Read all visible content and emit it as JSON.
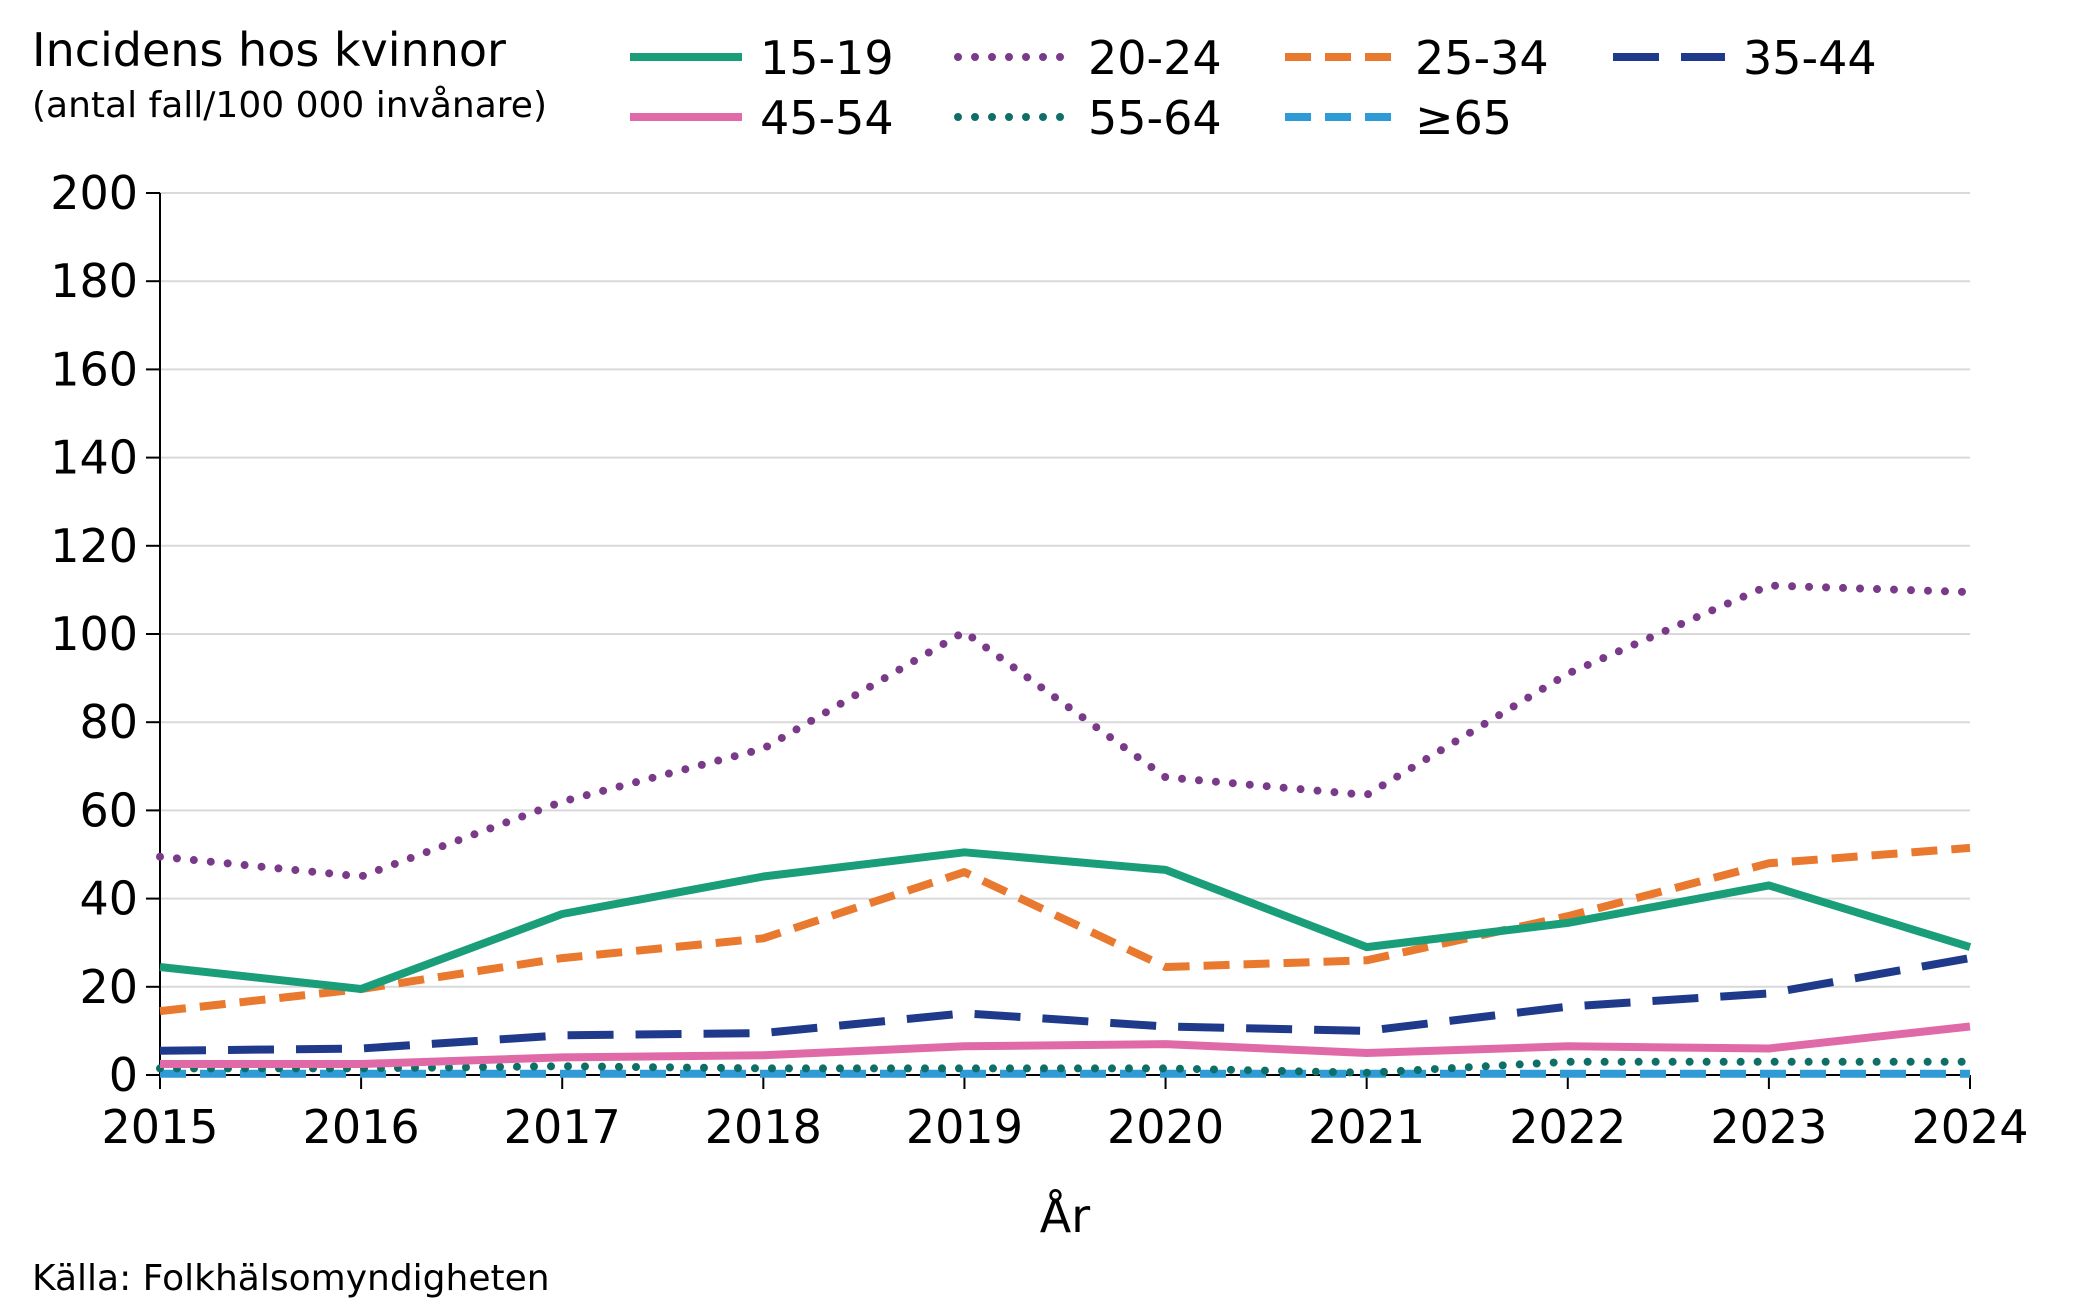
{
  "chart_data": {
    "type": "line",
    "title": "Incidens hos kvinnor",
    "subtitle": "(antal fall/100 000 invånare)",
    "xlabel": "År",
    "ylabel": "",
    "ylim": [
      0,
      200
    ],
    "yticks": [
      0,
      20,
      40,
      60,
      80,
      100,
      120,
      140,
      160,
      180,
      200
    ],
    "grid": true,
    "legend_position": "top",
    "x": [
      "2015",
      "2016",
      "2017",
      "2018",
      "2019",
      "2020",
      "2021",
      "2022",
      "2023",
      "2024"
    ],
    "series": [
      {
        "name": "15-19",
        "color": "#1a9e79",
        "style": "solid",
        "values": [
          24.5,
          19.5,
          36.5,
          45,
          50.5,
          46.5,
          29,
          34.5,
          43,
          29
        ]
      },
      {
        "name": "20-24",
        "color": "#7a3a8a",
        "style": "dotted",
        "values": [
          49.5,
          45,
          62,
          74,
          100.5,
          67.5,
          63.5,
          91,
          111,
          109.5
        ]
      },
      {
        "name": "25-34",
        "color": "#e8792e",
        "style": "dashed",
        "values": [
          14.5,
          19.5,
          26.5,
          31,
          46,
          24.5,
          26,
          36,
          48,
          51.5
        ]
      },
      {
        "name": "35-44",
        "color": "#1f3a8a",
        "style": "longdash",
        "values": [
          5.5,
          6,
          9,
          9.5,
          14,
          11,
          10,
          15.5,
          18.5,
          26.5
        ]
      },
      {
        "name": "45-54",
        "color": "#e06aa8",
        "style": "solid",
        "values": [
          2.5,
          2.5,
          4,
          4.5,
          6.5,
          7,
          5,
          6.5,
          6,
          11
        ]
      },
      {
        "name": "55-64",
        "color": "#0f6e66",
        "style": "dotted",
        "values": [
          1.5,
          1.5,
          2,
          1.5,
          1.5,
          1.5,
          0.5,
          3,
          3,
          3
        ]
      },
      {
        "name": "≥65",
        "color": "#2e9bd6",
        "style": "dashed",
        "values": [
          0.3,
          0.3,
          0.3,
          0.3,
          0.3,
          0.3,
          0.3,
          0.3,
          0.3,
          0.3
        ]
      }
    ],
    "source": "Källa: Folkhälsomyndigheten"
  }
}
